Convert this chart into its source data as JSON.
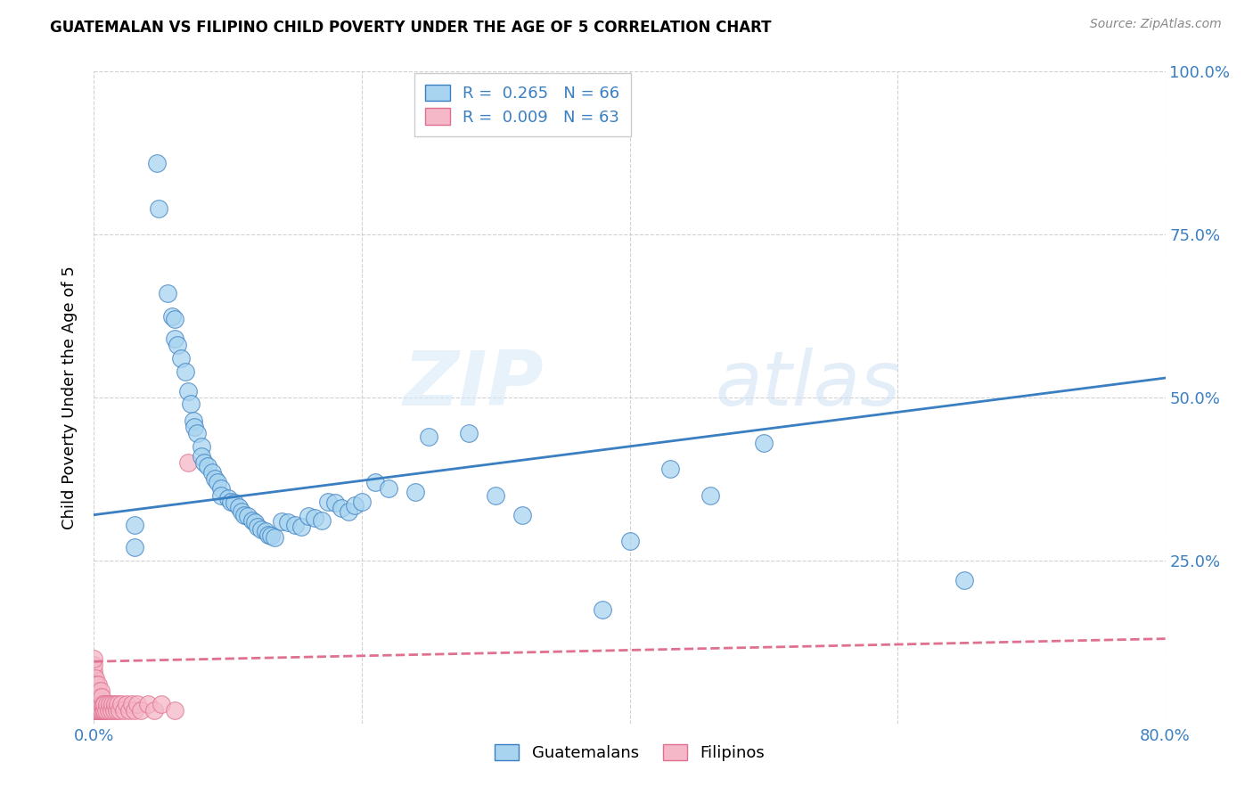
{
  "title": "GUATEMALAN VS FILIPINO CHILD POVERTY UNDER THE AGE OF 5 CORRELATION CHART",
  "source": "Source: ZipAtlas.com",
  "ylabel": "Child Poverty Under the Age of 5",
  "xlim": [
    0.0,
    0.8
  ],
  "ylim": [
    0.0,
    1.0
  ],
  "legend_r1": "R =  0.265   N = 66",
  "legend_r2": "R =  0.009   N = 63",
  "guatemalan_color": "#a8d4f0",
  "filipino_color": "#f5b8c8",
  "trend_guatemalan_color": "#3a7fc1",
  "trend_filipino_color": "#e07090",
  "watermark_zip": "ZIP",
  "watermark_atlas": "atlas",
  "guatemalan_x": [
    0.03,
    0.03,
    0.047,
    0.048,
    0.055,
    0.058,
    0.06,
    0.06,
    0.062,
    0.065,
    0.068,
    0.07,
    0.072,
    0.074,
    0.075,
    0.077,
    0.08,
    0.08,
    0.082,
    0.085,
    0.088,
    0.09,
    0.092,
    0.095,
    0.095,
    0.1,
    0.102,
    0.105,
    0.108,
    0.11,
    0.112,
    0.115,
    0.118,
    0.12,
    0.122,
    0.125,
    0.128,
    0.13,
    0.132,
    0.135,
    0.14,
    0.145,
    0.15,
    0.155,
    0.16,
    0.165,
    0.17,
    0.175,
    0.18,
    0.185,
    0.19,
    0.195,
    0.2,
    0.21,
    0.22,
    0.24,
    0.25,
    0.28,
    0.3,
    0.32,
    0.38,
    0.4,
    0.43,
    0.46,
    0.5,
    0.65
  ],
  "guatemalan_y": [
    0.305,
    0.27,
    0.86,
    0.79,
    0.66,
    0.625,
    0.59,
    0.62,
    0.58,
    0.56,
    0.54,
    0.51,
    0.49,
    0.465,
    0.455,
    0.445,
    0.425,
    0.41,
    0.4,
    0.395,
    0.385,
    0.375,
    0.37,
    0.36,
    0.35,
    0.345,
    0.34,
    0.338,
    0.332,
    0.325,
    0.32,
    0.318,
    0.312,
    0.308,
    0.302,
    0.298,
    0.295,
    0.29,
    0.288,
    0.285,
    0.31,
    0.308,
    0.305,
    0.302,
    0.318,
    0.315,
    0.312,
    0.34,
    0.338,
    0.33,
    0.325,
    0.335,
    0.34,
    0.37,
    0.36,
    0.355,
    0.44,
    0.445,
    0.35,
    0.32,
    0.175,
    0.28,
    0.39,
    0.35,
    0.43,
    0.22
  ],
  "filipino_x": [
    0.0,
    0.0,
    0.0,
    0.0,
    0.0,
    0.0,
    0.0,
    0.0,
    0.0,
    0.001,
    0.001,
    0.001,
    0.001,
    0.001,
    0.001,
    0.002,
    0.002,
    0.002,
    0.002,
    0.002,
    0.003,
    0.003,
    0.003,
    0.003,
    0.003,
    0.004,
    0.004,
    0.004,
    0.005,
    0.005,
    0.005,
    0.005,
    0.006,
    0.006,
    0.006,
    0.007,
    0.007,
    0.008,
    0.008,
    0.009,
    0.01,
    0.011,
    0.012,
    0.013,
    0.014,
    0.015,
    0.016,
    0.017,
    0.018,
    0.019,
    0.02,
    0.022,
    0.024,
    0.026,
    0.028,
    0.03,
    0.032,
    0.035,
    0.04,
    0.045,
    0.05,
    0.06,
    0.07
  ],
  "filipino_y": [
    0.02,
    0.03,
    0.04,
    0.05,
    0.06,
    0.07,
    0.08,
    0.09,
    0.1,
    0.02,
    0.03,
    0.04,
    0.05,
    0.06,
    0.07,
    0.02,
    0.03,
    0.04,
    0.05,
    0.06,
    0.02,
    0.03,
    0.04,
    0.05,
    0.06,
    0.02,
    0.03,
    0.04,
    0.02,
    0.03,
    0.04,
    0.05,
    0.02,
    0.03,
    0.04,
    0.02,
    0.03,
    0.02,
    0.03,
    0.02,
    0.03,
    0.02,
    0.03,
    0.02,
    0.03,
    0.02,
    0.03,
    0.02,
    0.03,
    0.02,
    0.03,
    0.02,
    0.03,
    0.02,
    0.03,
    0.02,
    0.03,
    0.02,
    0.03,
    0.02,
    0.03,
    0.02,
    0.4
  ]
}
